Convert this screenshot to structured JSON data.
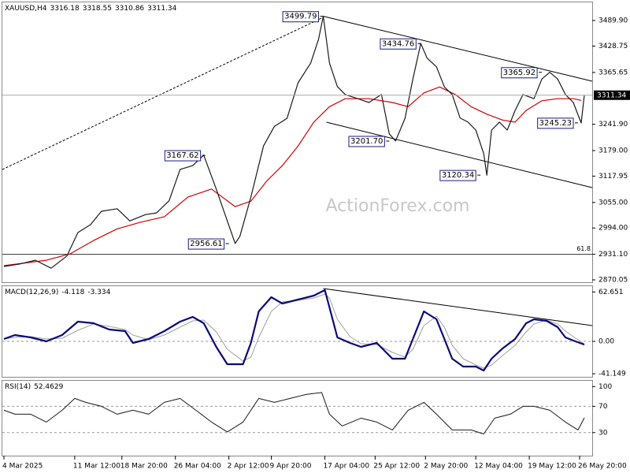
{
  "chart_data": [
    {
      "type": "line",
      "symbol": "XAUUSD,H4",
      "ohlc": [
        3316.18,
        3318.55,
        3310.86,
        3311.34
      ],
      "watermark": "ActionForex.com",
      "xlim": [
        0,
        375
      ],
      "ylim": [
        2864.4,
        3533.2
      ],
      "yticks": [
        {
          "value": 3489.9,
          "label": "3489.90"
        },
        {
          "value": 3428.75,
          "label": "3428.75"
        },
        {
          "value": 3365.65,
          "label": "3365.65"
        },
        {
          "value": 3241.9,
          "label": "3241.90"
        },
        {
          "value": 3179,
          "label": "3179.00"
        },
        {
          "value": 3117.95,
          "label": "3117.95"
        },
        {
          "value": 3055,
          "label": "3055.00"
        },
        {
          "value": 2994,
          "label": "2994.00"
        },
        {
          "value": 2931.1,
          "label": "2931.10"
        },
        {
          "value": 2870.05,
          "label": "2870.05"
        }
      ],
      "series": [
        {
          "name": "XAUUSD",
          "color": "#1a1a1a",
          "x": [
            1,
            11,
            21,
            31,
            41,
            48,
            56,
            63,
            73,
            81,
            91,
            98,
            106,
            113,
            121,
            128,
            136,
            143,
            148,
            151,
            158,
            166,
            173,
            181,
            188,
            196,
            201,
            204,
            208,
            213,
            218,
            226,
            233,
            241,
            246,
            250,
            256,
            261,
            266,
            270,
            276,
            281,
            286,
            291,
            296,
            301,
            306,
            308,
            311,
            316,
            321,
            326,
            331,
            338,
            343,
            348,
            353,
            358,
            363,
            368,
            370
          ],
          "values": [
            2902,
            2908,
            2917,
            2898,
            2927,
            2983,
            3002,
            3034,
            3040,
            3011,
            3026,
            3030,
            3059,
            3134,
            3143,
            3168,
            3087,
            3011,
            2957,
            2974,
            3068,
            3190,
            3237,
            3256,
            3341,
            3388,
            3445,
            3500,
            3388,
            3332,
            3313,
            3303,
            3294,
            3313,
            3219,
            3202,
            3256,
            3350,
            3435,
            3400,
            3379,
            3331,
            3313,
            3257,
            3247,
            3228,
            3172,
            3120,
            3228,
            3247,
            3228,
            3275,
            3313,
            3303,
            3350,
            3366,
            3350,
            3313,
            3294,
            3245,
            3311.34
          ]
        },
        {
          "name": "MA",
          "color": "#d40000",
          "x": [
            1,
            28,
            43,
            58,
            73,
            88,
            103,
            118,
            133,
            148,
            158,
            168,
            178,
            188,
            198,
            208,
            218,
            233,
            248,
            258,
            268,
            278,
            288,
            298,
            308,
            318,
            326,
            333,
            343,
            353,
            363,
            368
          ],
          "values": [
            2904,
            2917,
            2932,
            2964,
            2992,
            3008,
            3021,
            3068,
            3087,
            3045,
            3058,
            3106,
            3143,
            3190,
            3247,
            3284,
            3303,
            3303,
            3294,
            3284,
            3317,
            3331,
            3313,
            3284,
            3266,
            3252,
            3247,
            3275,
            3298,
            3303,
            3303,
            3299
          ]
        }
      ],
      "fib_level": {
        "label": "61.8",
        "value": 2931.1
      },
      "annotations": [
        {
          "x": 204,
          "value": 3499.79,
          "label": "3499.79"
        },
        {
          "x": 266,
          "value": 3434.76,
          "label": "3434.76"
        },
        {
          "x": 343,
          "value": 3365.92,
          "label": "3365.92"
        },
        {
          "x": 366,
          "value": 3245.23,
          "label": "3245.23"
        },
        {
          "x": 246,
          "value": 3201.7,
          "label": "3201.70"
        },
        {
          "x": 304,
          "value": 3120.34,
          "label": "3120.34"
        },
        {
          "x": 129,
          "value": 3167.62,
          "label": "3167.62"
        },
        {
          "x": 144,
          "value": 2956.61,
          "label": "2956.61"
        }
      ],
      "trendlines": [
        {
          "x": [
            204,
            375
          ],
          "values": [
            3500,
            3344.8
          ],
          "dash": false
        },
        {
          "x": [
            206,
            375
          ],
          "values": [
            3246.9,
            3090.5
          ],
          "dash": false
        },
        {
          "x": [
            0,
            204
          ],
          "values": [
            3133.8,
            3497.4
          ],
          "dash": true
        }
      ]
    },
    {
      "type": "line",
      "label": "MACD(12,26,9)",
      "xlim": [
        0,
        375
      ],
      "ylim": [
        -45,
        71
      ],
      "yticks": [
        62.651,
        {
          "value": 0,
          "label": "0.00"
        },
        -41.149
      ],
      "levels": [
        0
      ],
      "series": [
        {
          "name": "MACD",
          "color": "#0a0a78",
          "width": 2.2,
          "x": [
            1,
            8,
            18,
            28,
            38,
            48,
            58,
            68,
            78,
            83,
            93,
            103,
            113,
            121,
            128,
            136,
            143,
            153,
            158,
            163,
            171,
            178,
            188,
            198,
            205,
            208,
            213,
            221,
            228,
            238,
            248,
            256,
            261,
            268,
            276,
            281,
            286,
            293,
            301,
            306,
            311,
            318,
            326,
            333,
            338,
            346,
            353,
            358,
            363,
            370
          ],
          "values": [
            3,
            8,
            5,
            0,
            8,
            25,
            23,
            15,
            13,
            -2,
            3,
            13,
            25,
            31,
            23,
            -7,
            -29,
            -29,
            -2,
            38,
            56,
            48,
            53,
            58,
            65,
            43,
            5,
            -2,
            -7,
            -2,
            -22,
            -22,
            3,
            38,
            28,
            3,
            -22,
            -32,
            -32,
            -37,
            -22,
            -9,
            3,
            23,
            28,
            26,
            18,
            5,
            1,
            -4.118
          ]
        },
        {
          "name": "Signal",
          "color": "#a0a0a0",
          "width": 1,
          "x": [
            1,
            8,
            18,
            28,
            38,
            48,
            58,
            68,
            78,
            83,
            93,
            103,
            113,
            121,
            128,
            136,
            143,
            153,
            158,
            163,
            171,
            178,
            188,
            198,
            205,
            208,
            213,
            221,
            228,
            238,
            248,
            256,
            261,
            268,
            276,
            281,
            286,
            293,
            301,
            306,
            311,
            318,
            326,
            333,
            338,
            346,
            353,
            358,
            363,
            370
          ],
          "values": [
            3,
            5,
            6,
            3,
            4,
            14,
            22,
            19,
            15,
            8,
            2,
            8,
            18,
            26,
            27,
            12,
            -10,
            -25,
            -20,
            5,
            38,
            50,
            52,
            55,
            60,
            55,
            28,
            6,
            -3,
            -4,
            -14,
            -20,
            -10,
            20,
            32,
            18,
            -5,
            -22,
            -30,
            -34,
            -30,
            -18,
            -5,
            12,
            22,
            27,
            22,
            13,
            6,
            -3.334
          ]
        }
      ],
      "trendlines": [
        {
          "x": [
            204,
            375
          ],
          "values": [
            67,
            20
          ],
          "dash": false
        }
      ]
    },
    {
      "type": "line",
      "label": "RSI(14)",
      "xlim": [
        0,
        375
      ],
      "ylim": [
        -5,
        110
      ],
      "yticks": [
        100,
        70,
        30
      ],
      "levels": [
        70,
        30
      ],
      "xticks": [
        {
          "value": 1,
          "label": "4 Mar 2025"
        },
        {
          "value": 46,
          "label": "11 Mar 12:00"
        },
        {
          "value": 76,
          "label": "18 Mar 20:00"
        },
        {
          "value": 110,
          "label": "26 Mar 04:00"
        },
        {
          "value": 144,
          "label": "2 Apr 12:00"
        },
        {
          "value": 171,
          "label": "9 Apr 20:00"
        },
        {
          "value": 205,
          "label": "17 Apr 04:00"
        },
        {
          "value": 237,
          "label": "25 Apr 12:00"
        },
        {
          "value": 269,
          "label": "2 May 20:00"
        },
        {
          "value": 301,
          "label": "12 May 04:00"
        },
        {
          "value": 335,
          "label": "19 May 12:00"
        },
        {
          "value": 367,
          "label": "26 May 20:00"
        }
      ],
      "series": [
        {
          "name": "RSI",
          "color": "#1a1a1a",
          "width": 1,
          "x": [
            1,
            8,
            18,
            28,
            38,
            46,
            53,
            63,
            73,
            83,
            93,
            103,
            113,
            123,
            133,
            143,
            153,
            163,
            173,
            183,
            193,
            203,
            208,
            216,
            228,
            238,
            248,
            258,
            268,
            276,
            286,
            298,
            306,
            313,
            323,
            331,
            338,
            348,
            358,
            366,
            370
          ],
          "values": [
            64,
            58,
            58,
            46,
            64,
            82,
            76,
            70,
            58,
            64,
            58,
            76,
            82,
            64,
            46,
            31,
            46,
            82,
            76,
            82,
            88,
            91,
            58,
            40,
            52,
            46,
            34,
            64,
            76,
            58,
            34,
            34,
            28,
            52,
            58,
            70,
            70,
            64,
            46,
            34,
            52.4629
          ]
        }
      ]
    }
  ]
}
